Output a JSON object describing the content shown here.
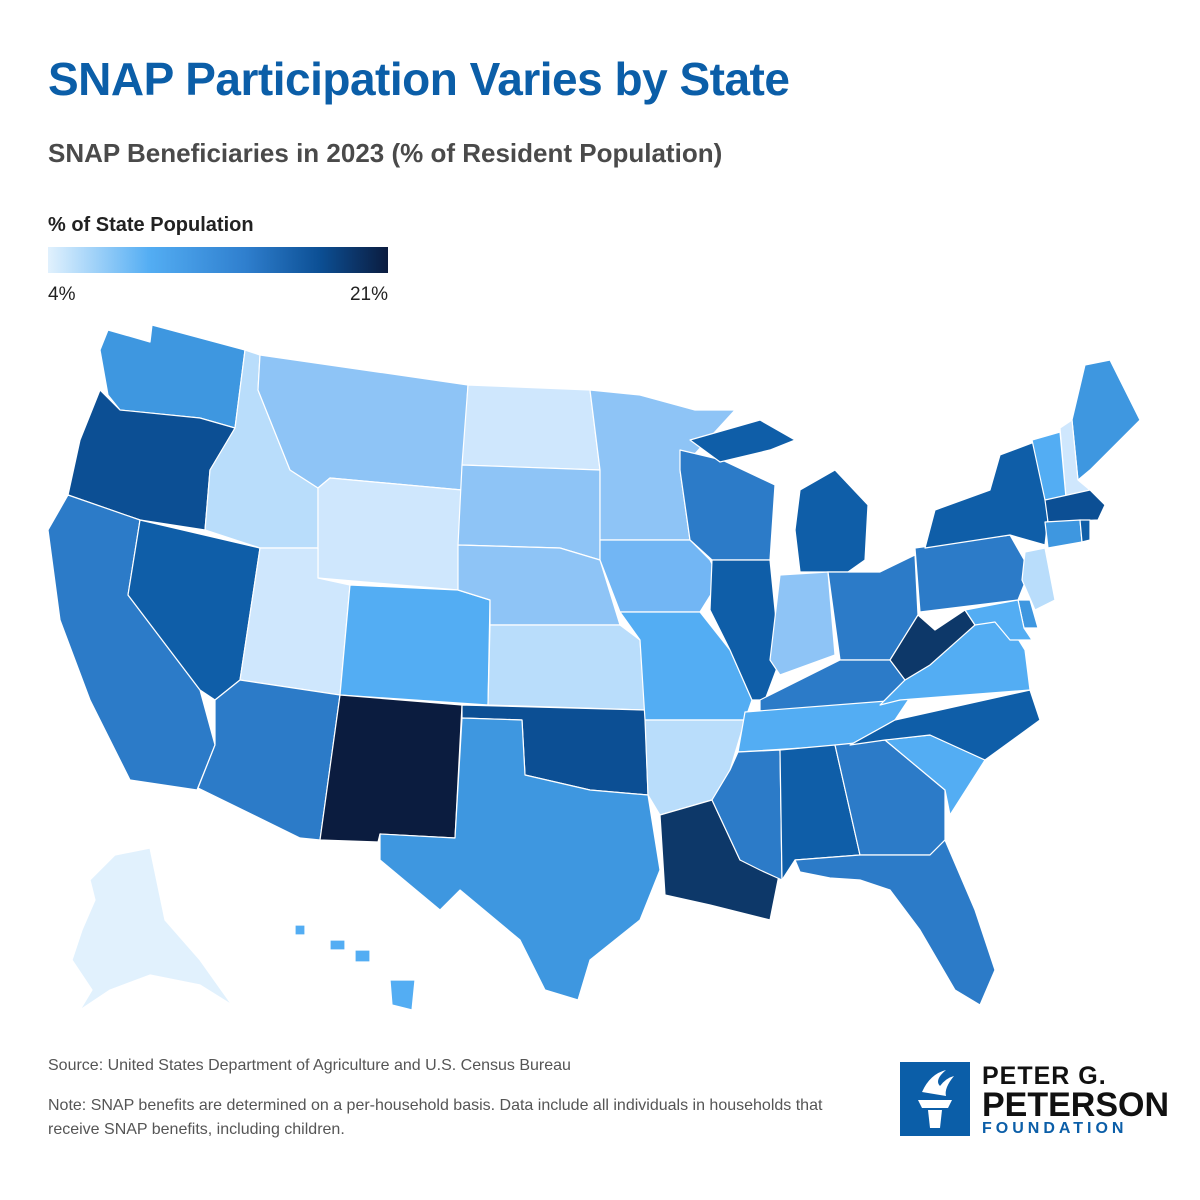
{
  "title": "SNAP Participation Varies by State",
  "subtitle": "SNAP Beneficiaries in 2023 (% of Resident Population)",
  "legend": {
    "title": "% of State Population",
    "min_label": "4%",
    "max_label": "21%",
    "colors": [
      "#e1f1fd",
      "#53adf3",
      "#2f7fce",
      "#0c4f94",
      "#0b1c3f"
    ]
  },
  "map": {
    "background": "#ffffff",
    "states": [
      {
        "state": "WA",
        "level": 5
      },
      {
        "state": "OR",
        "level": 8
      },
      {
        "state": "CA",
        "level": 6
      },
      {
        "state": "NV",
        "level": 7
      },
      {
        "state": "ID",
        "level": 1
      },
      {
        "state": "MT",
        "level": 2
      },
      {
        "state": "WY",
        "level": 0
      },
      {
        "state": "UT",
        "level": 0
      },
      {
        "state": "AZ",
        "level": 6
      },
      {
        "state": "CO",
        "level": 4
      },
      {
        "state": "NM",
        "level": 10
      },
      {
        "state": "ND",
        "level": 0
      },
      {
        "state": "SD",
        "level": 2
      },
      {
        "state": "NE",
        "level": 2
      },
      {
        "state": "KS",
        "level": 1
      },
      {
        "state": "OK",
        "level": 8
      },
      {
        "state": "TX",
        "level": 5
      },
      {
        "state": "MN",
        "level": 2
      },
      {
        "state": "IA",
        "level": 3
      },
      {
        "state": "MO",
        "level": 4
      },
      {
        "state": "AR",
        "level": 1
      },
      {
        "state": "LA",
        "level": 9
      },
      {
        "state": "WI",
        "level": 6
      },
      {
        "state": "IL",
        "level": 7
      },
      {
        "state": "MI",
        "level": 7
      },
      {
        "state": "IN",
        "level": 2
      },
      {
        "state": "OH",
        "level": 6
      },
      {
        "state": "KY",
        "level": 6
      },
      {
        "state": "TN",
        "level": 4
      },
      {
        "state": "MS",
        "level": 6
      },
      {
        "state": "AL",
        "level": 7
      },
      {
        "state": "GA",
        "level": 6
      },
      {
        "state": "FL",
        "level": 6
      },
      {
        "state": "SC",
        "level": 4
      },
      {
        "state": "NC",
        "level": 7
      },
      {
        "state": "VA",
        "level": 4
      },
      {
        "state": "WV",
        "level": 9
      },
      {
        "state": "PA",
        "level": 6
      },
      {
        "state": "NY",
        "level": 7
      },
      {
        "state": "ME",
        "level": 5
      },
      {
        "state": "NH",
        "level": 0
      },
      {
        "state": "VT",
        "level": 4
      },
      {
        "state": "MA",
        "level": 8
      },
      {
        "state": "CT",
        "level": 5
      },
      {
        "state": "RI",
        "level": 7
      },
      {
        "state": "NJ",
        "level": 1
      },
      {
        "state": "DE",
        "level": 5
      },
      {
        "state": "MD",
        "level": 4
      },
      {
        "state": "AK",
        "level": 0
      },
      {
        "state": "HI",
        "level": 4
      }
    ]
  },
  "source": "Source: United States Department of Agriculture and U.S. Census Bureau",
  "note": "Note: SNAP benefits are determined on a per-household basis. Data include all individuals in households that receive SNAP benefits, including children.",
  "logo": {
    "line1": "PETER G.",
    "line2": "PETERSON",
    "line3": "FOUNDATION",
    "icon": "torch-icon"
  }
}
